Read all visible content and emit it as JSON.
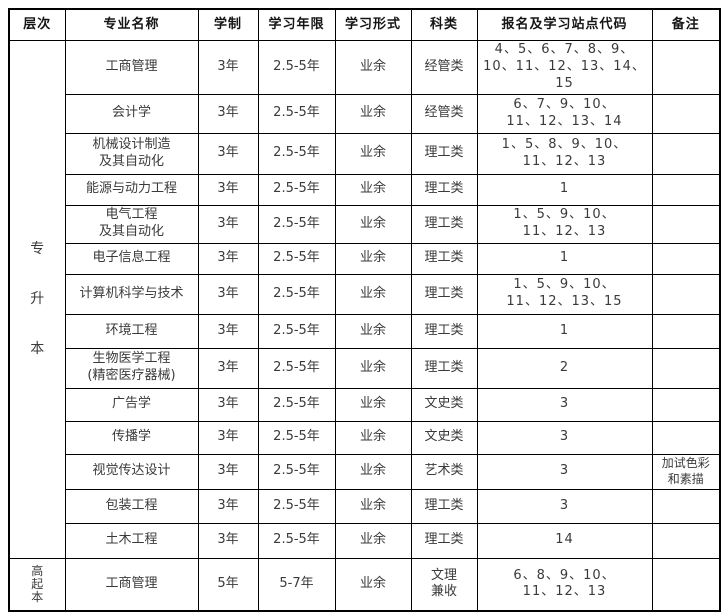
{
  "table": {
    "headers": [
      "层次",
      "专业名称",
      "学制",
      "学习年限",
      "学习形式",
      "科类",
      "报名及学习站点代码",
      "备注"
    ],
    "groups": [
      {
        "level": "专升本",
        "rows": [
          {
            "major": "工商管理",
            "duration": "3年",
            "period": "2.5-5年",
            "form": "业余",
            "category": "经管类",
            "codes": "4、5、6、7、8、9、\n10、11、12、13、14、15",
            "remark": ""
          },
          {
            "major": "会计学",
            "duration": "3年",
            "period": "2.5-5年",
            "form": "业余",
            "category": "经管类",
            "codes": "6、7、9、10、\n11、12、13、14",
            "remark": ""
          },
          {
            "major": "机械设计制造\n及其自动化",
            "duration": "3年",
            "period": "2.5-5年",
            "form": "业余",
            "category": "理工类",
            "codes": "1、5、8、9、10、\n11、12、13",
            "remark": ""
          },
          {
            "major": "能源与动力工程",
            "duration": "3年",
            "period": "2.5-5年",
            "form": "业余",
            "category": "理工类",
            "codes": "1",
            "remark": ""
          },
          {
            "major": "电气工程\n及其自动化",
            "duration": "3年",
            "period": "2.5-5年",
            "form": "业余",
            "category": "理工类",
            "codes": "1、5、9、10、\n11、12、13",
            "remark": ""
          },
          {
            "major": "电子信息工程",
            "duration": "3年",
            "period": "2.5-5年",
            "form": "业余",
            "category": "理工类",
            "codes": "1",
            "remark": ""
          },
          {
            "major": "计算机科学与技术",
            "duration": "3年",
            "period": "2.5-5年",
            "form": "业余",
            "category": "理工类",
            "codes": "1、5、9、10、\n11、12、13、15",
            "remark": ""
          },
          {
            "major": "环境工程",
            "duration": "3年",
            "period": "2.5-5年",
            "form": "业余",
            "category": "理工类",
            "codes": "1",
            "remark": ""
          },
          {
            "major": "生物医学工程\n(精密医疗器械)",
            "duration": "3年",
            "period": "2.5-5年",
            "form": "业余",
            "category": "理工类",
            "codes": "2",
            "remark": ""
          },
          {
            "major": "广告学",
            "duration": "3年",
            "period": "2.5-5年",
            "form": "业余",
            "category": "文史类",
            "codes": "3",
            "remark": ""
          },
          {
            "major": "传播学",
            "duration": "3年",
            "period": "2.5-5年",
            "form": "业余",
            "category": "文史类",
            "codes": "3",
            "remark": ""
          },
          {
            "major": "视觉传达设计",
            "duration": "3年",
            "period": "2.5-5年",
            "form": "业余",
            "category": "艺术类",
            "codes": "3",
            "remark": "加试色彩\n和素描"
          },
          {
            "major": "包装工程",
            "duration": "3年",
            "period": "2.5-5年",
            "form": "业余",
            "category": "理工类",
            "codes": "3",
            "remark": ""
          },
          {
            "major": "土木工程",
            "duration": "3年",
            "period": "2.5-5年",
            "form": "业余",
            "category": "理工类",
            "codes": "14",
            "remark": ""
          }
        ]
      },
      {
        "level": "高起本",
        "rows": [
          {
            "major": "工商管理",
            "duration": "5年",
            "period": "5-7年",
            "form": "业余",
            "category": "文理\n兼收",
            "codes": "6、8、9、10、\n11、12、13",
            "remark": ""
          }
        ]
      }
    ]
  }
}
